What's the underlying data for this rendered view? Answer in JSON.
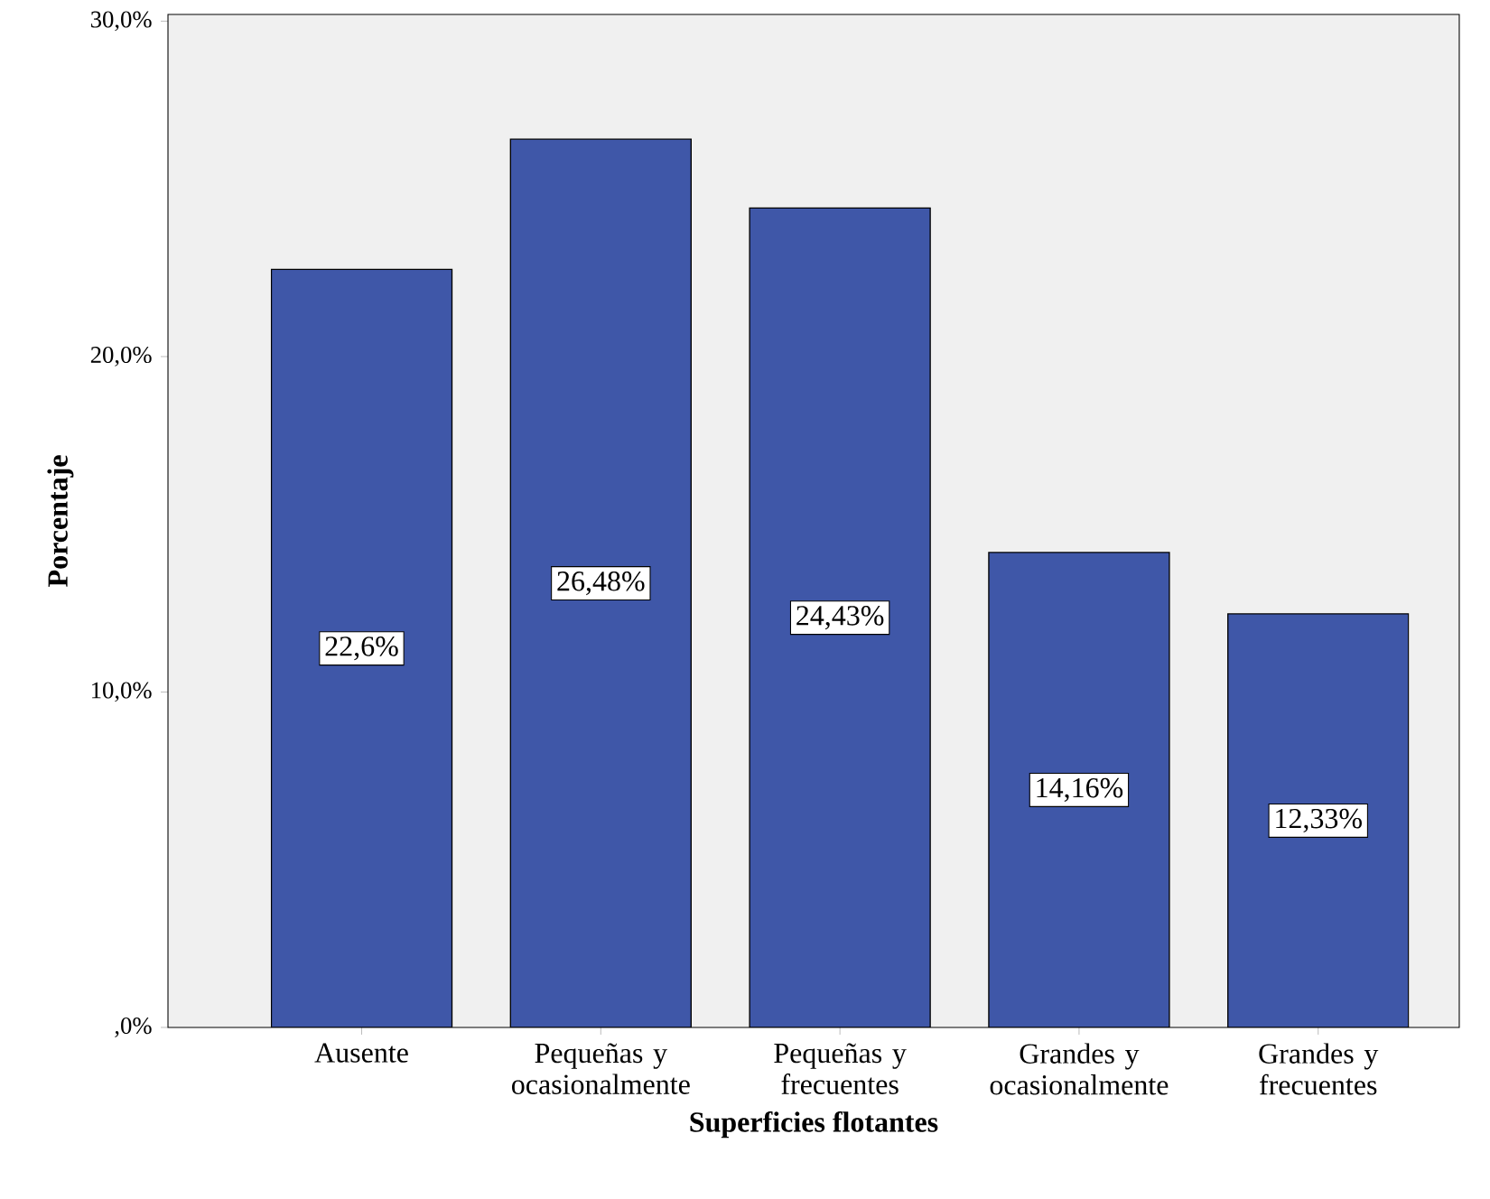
{
  "chart_data": {
    "type": "bar",
    "xlabel": "Superficies flotantes",
    "ylabel": "Porcentaje",
    "categories": [
      "Ausente",
      "Pequeñas y ocasionalmente",
      "Pequeñas y frecuentes",
      "Grandes y ocasionalmente",
      "Grandes y frecuentes"
    ],
    "values": [
      22.6,
      26.48,
      24.43,
      14.16,
      12.33
    ],
    "value_labels": [
      "22,6%",
      "26,48%",
      "24,43%",
      "14,16%",
      "12,33%"
    ],
    "color": "#3f57a8",
    "ylim": [
      0,
      30.2
    ],
    "yticks": [
      {
        "value": 0,
        "label": ",0%"
      },
      {
        "value": 10,
        "label": "10,0%"
      },
      {
        "value": 20,
        "label": "20,0%"
      },
      {
        "value": 30,
        "label": "30,0%"
      }
    ],
    "grid": false
  }
}
